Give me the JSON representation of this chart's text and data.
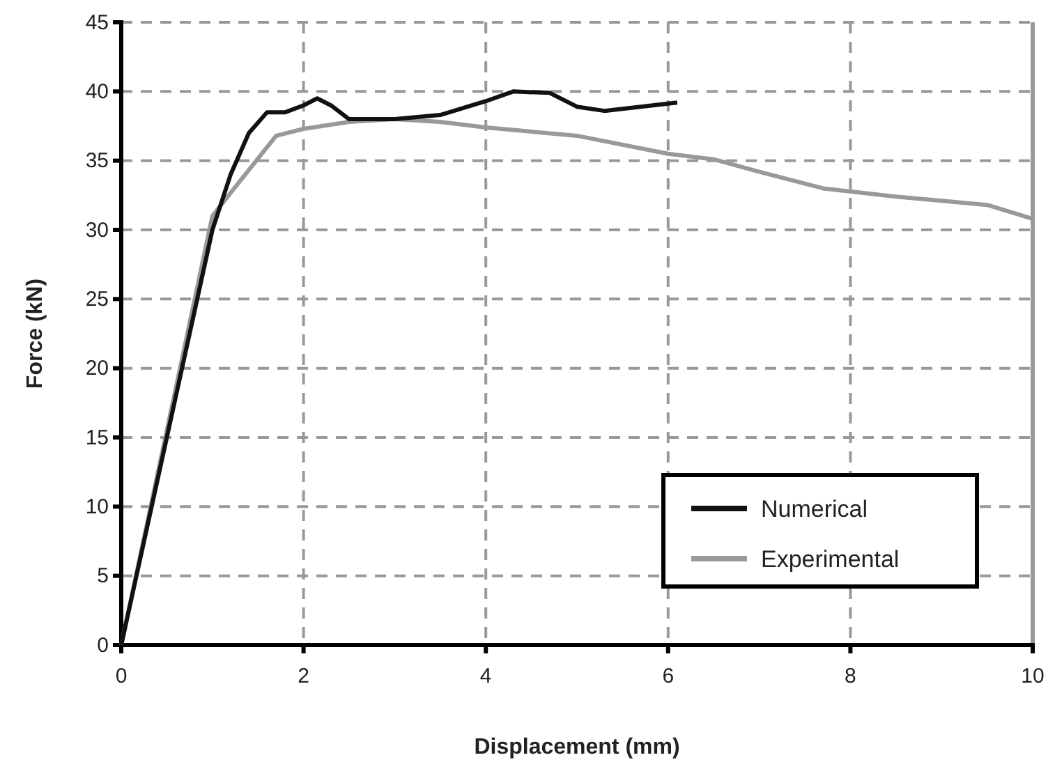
{
  "chart_data": {
    "type": "line",
    "xlabel": "Displacement (mm)",
    "ylabel": "Force (kN)",
    "xlim": [
      0,
      10
    ],
    "xticks": [
      0,
      2,
      4,
      6,
      8,
      10
    ],
    "ylim": [
      0,
      45
    ],
    "yticks": [
      0,
      5,
      10,
      15,
      20,
      25,
      30,
      35,
      40,
      45
    ],
    "grid": true,
    "legend": "bottom right",
    "line_style": "solid",
    "series": [
      {
        "name": "Numerical",
        "color": "#111111",
        "x": [
          0,
          0.5,
          1,
          1.2,
          1.4,
          1.6,
          1.8,
          2,
          2.15,
          2.3,
          2.5,
          3,
          3.5,
          4,
          4.3,
          4.7,
          5,
          5.3,
          5.7,
          6.1
        ],
        "values": [
          0,
          15,
          30,
          34,
          37,
          38.5,
          38.5,
          39,
          39.5,
          39,
          38,
          38,
          38.3,
          39.3,
          40,
          39.9,
          38.9,
          38.6,
          38.9,
          39.2
        ]
      },
      {
        "name": "Experimental",
        "color": "#999999",
        "x": [
          0,
          1,
          1.3,
          1.7,
          2,
          2.5,
          3,
          3.5,
          4,
          5,
          6,
          6.5,
          7,
          7.7,
          8.5,
          9.5,
          10
        ],
        "values": [
          0,
          31,
          33.5,
          36.8,
          37.3,
          37.8,
          38,
          37.8,
          37.4,
          36.8,
          35.5,
          35.1,
          34.2,
          33,
          32.4,
          31.8,
          30.8
        ]
      }
    ]
  }
}
